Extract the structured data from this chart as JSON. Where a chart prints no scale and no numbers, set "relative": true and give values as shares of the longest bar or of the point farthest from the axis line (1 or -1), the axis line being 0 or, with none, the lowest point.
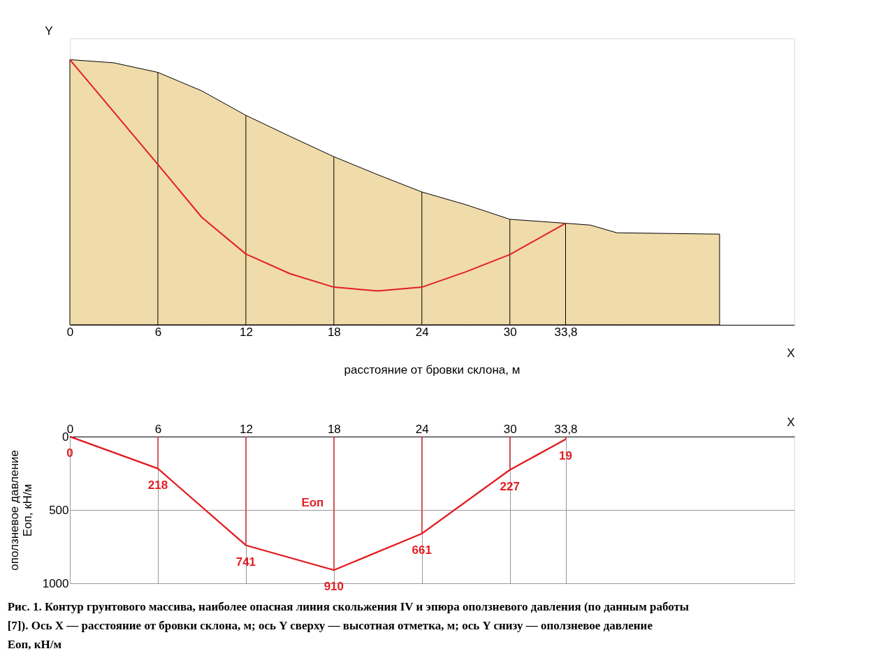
{
  "chart_data": [
    {
      "type": "area",
      "relative": true,
      "xlabel": "X",
      "ylabel": "Y",
      "xlim": [
        0,
        49.4
      ],
      "xticks": [
        0,
        6,
        12,
        18,
        24,
        30,
        {
          "value": 33.8,
          "label": "33,8"
        }
      ],
      "series": [
        {
          "type": "area",
          "color": "#f0dbab",
          "x": [
            0,
            3,
            6,
            9,
            12,
            15,
            18,
            21,
            24,
            27,
            30,
            33.8,
            35.5,
            37.3,
            44.3
          ],
          "values": [
            1.0,
            0.988,
            0.952,
            0.882,
            0.79,
            0.711,
            0.634,
            0.566,
            0.501,
            0.453,
            0.398,
            0.383,
            0.376,
            0.347,
            0.342
          ]
        },
        {
          "type": "line",
          "color": "#e31e24",
          "x": [
            0,
            6,
            9,
            12,
            15,
            18,
            21,
            24,
            27,
            30,
            33.8
          ],
          "values": [
            1.0,
            0.605,
            0.405,
            0.267,
            0.193,
            0.142,
            0.128,
            0.142,
            0.2,
            0.265,
            0.383
          ]
        }
      ],
      "ref_lines": [
        {
          "axis": "x",
          "value": 6,
          "color": "#000000"
        },
        {
          "axis": "x",
          "value": 12,
          "color": "#000000"
        },
        {
          "axis": "x",
          "value": 18,
          "color": "#000000"
        },
        {
          "axis": "x",
          "value": 24,
          "color": "#000000"
        },
        {
          "axis": "x",
          "value": 30,
          "color": "#000000"
        },
        {
          "axis": "x",
          "value": 33.8,
          "color": "#000000"
        }
      ],
      "annotations": [
        "расстояние от бровки склона, м"
      ]
    },
    {
      "type": "line",
      "xlabel": "X",
      "ylabel": "оползневое давление\nEоп, кН/м",
      "xlim": [
        0,
        49.4
      ],
      "xticks": [
        0,
        6,
        12,
        18,
        24,
        30,
        {
          "value": 33.8,
          "label": "33,8"
        }
      ],
      "ylim": [
        1000,
        0
      ],
      "yticks": [
        0,
        500,
        1000
      ],
      "grid": true,
      "data_labels": true,
      "marker": "none",
      "x": [
        0,
        6,
        12,
        18,
        24,
        30,
        33.8
      ],
      "series": [
        {
          "color": "#e31e24",
          "values": [
            0,
            218,
            741,
            910,
            661,
            227,
            19
          ]
        }
      ],
      "annotations": [
        "Eоп",
        "Рис. 1. Контур грунтового массива, наиболее опасная линия скольжения IV и эпюра оползневого давления (по данным работы [7]). Ось X — расстояние от бровки склона, м; ось Y сверху — высотная отметка, м; ось Y снизу — оползневое давление Eоп, кН/м"
      ]
    }
  ]
}
